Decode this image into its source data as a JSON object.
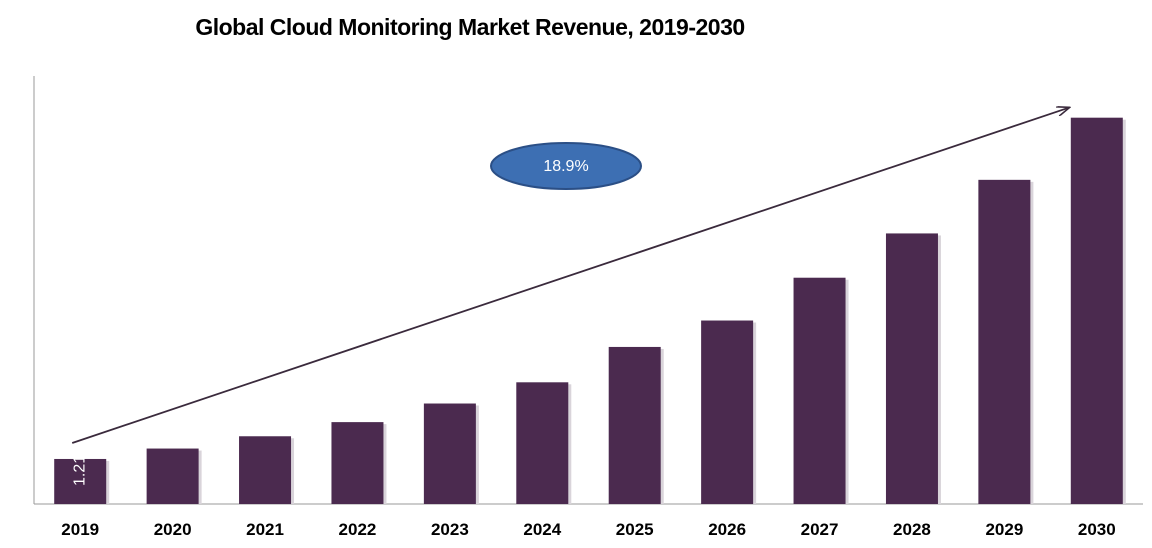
{
  "chart_data": {
    "type": "bar",
    "title": "Global Cloud Monitoring Market Revenue, 2019-2030",
    "xlabel": "",
    "ylabel": "",
    "categories": [
      "2019",
      "2020",
      "2021",
      "2022",
      "2023",
      "2024",
      "2025",
      "2026",
      "2027",
      "2028",
      "2029",
      "2030"
    ],
    "values": [
      1.21,
      1.49,
      1.82,
      2.2,
      2.7,
      3.27,
      4.22,
      4.93,
      6.08,
      7.27,
      8.71,
      10.38
    ],
    "data_labels": {
      "2019": "1.21"
    },
    "ylim": [
      0,
      11.5
    ],
    "grid": false,
    "bar_color": "#4b2a4f",
    "annotation": {
      "label": "18.9%",
      "fill": "#3d6fb3",
      "stroke": "#2b4f86"
    },
    "trend_arrow": true
  }
}
